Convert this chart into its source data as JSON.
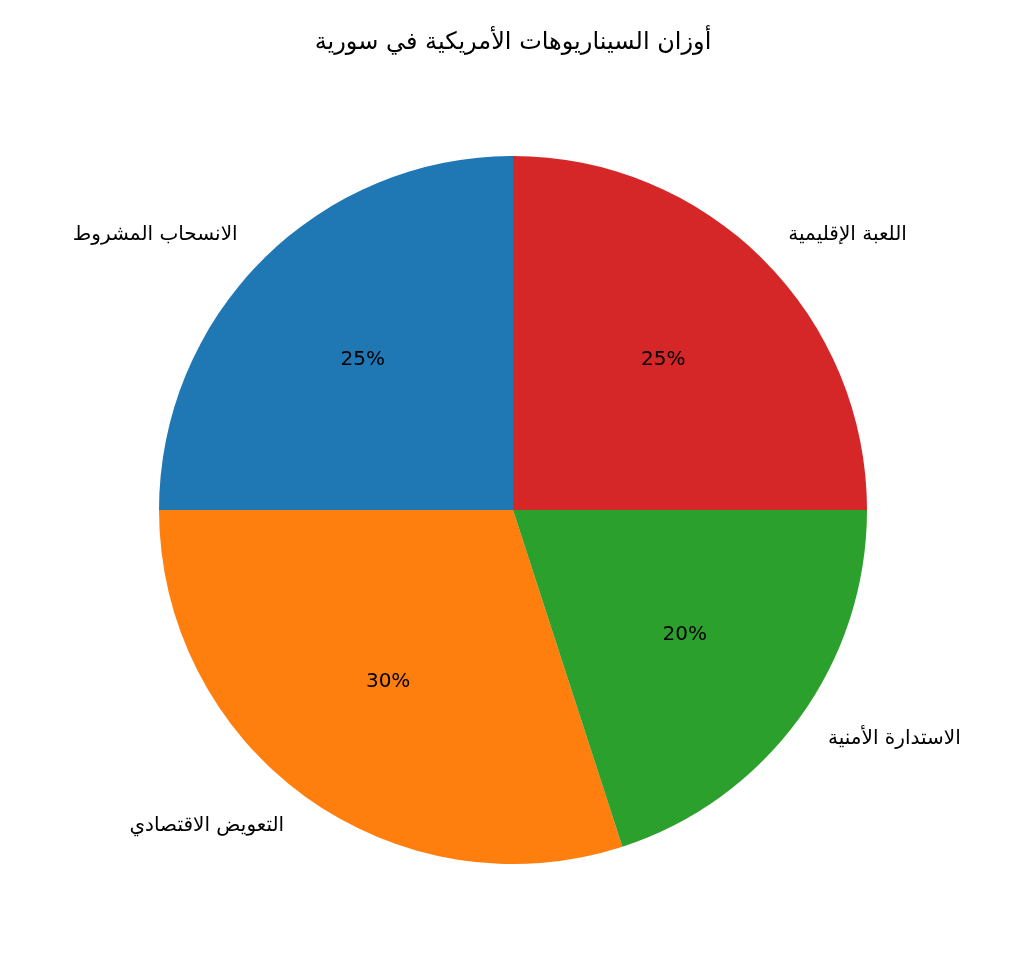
{
  "chart_data": {
    "type": "pie",
    "title": "أوزان السيناريوهات الأمريكية في سورية",
    "categories": [
      "الانسحاب المشروط",
      "التعويض الاقتصادي",
      "الاستدارة الأمنية",
      "اللعبة الإقليمية"
    ],
    "values": [
      25,
      30,
      20,
      25
    ],
    "colors": [
      "#1f77b4",
      "#ff7f0e",
      "#2ca02c",
      "#d62728"
    ],
    "value_labels": [
      "25%",
      "30%",
      "20%",
      "25%"
    ]
  }
}
